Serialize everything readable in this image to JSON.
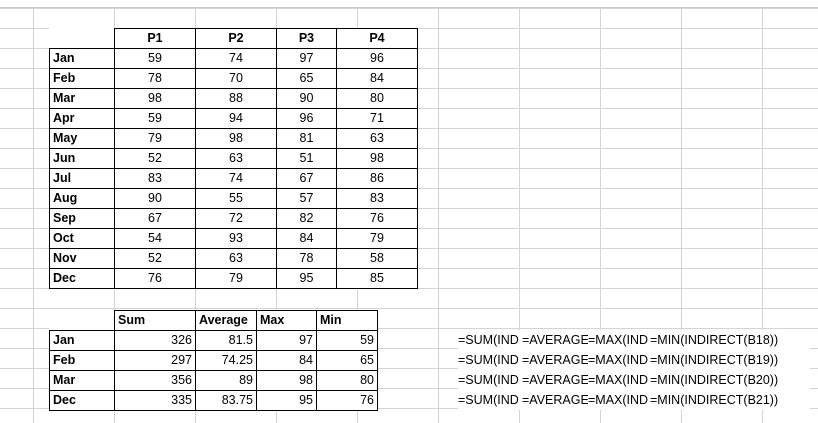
{
  "table1": {
    "headers": [
      "P1",
      "P2",
      "P3",
      "P4"
    ],
    "rows": [
      {
        "label": "Jan",
        "values": [
          "59",
          "74",
          "97",
          "96"
        ]
      },
      {
        "label": "Feb",
        "values": [
          "78",
          "70",
          "65",
          "84"
        ]
      },
      {
        "label": "Mar",
        "values": [
          "98",
          "88",
          "90",
          "80"
        ]
      },
      {
        "label": "Apr",
        "values": [
          "59",
          "94",
          "96",
          "71"
        ]
      },
      {
        "label": "May",
        "values": [
          "79",
          "98",
          "81",
          "63"
        ]
      },
      {
        "label": "Jun",
        "values": [
          "52",
          "63",
          "51",
          "98"
        ]
      },
      {
        "label": "Jul",
        "values": [
          "83",
          "74",
          "67",
          "86"
        ]
      },
      {
        "label": "Aug",
        "values": [
          "90",
          "55",
          "57",
          "83"
        ]
      },
      {
        "label": "Sep",
        "values": [
          "67",
          "72",
          "82",
          "76"
        ]
      },
      {
        "label": "Oct",
        "values": [
          "54",
          "93",
          "84",
          "79"
        ]
      },
      {
        "label": "Nov",
        "values": [
          "52",
          "63",
          "78",
          "58"
        ]
      },
      {
        "label": "Dec",
        "values": [
          "76",
          "79",
          "95",
          "85"
        ]
      }
    ]
  },
  "table2": {
    "headers": [
      "Sum",
      "Average",
      "Max",
      "Min"
    ],
    "rows": [
      {
        "label": "Jan",
        "values": [
          "326",
          "81.5",
          "97",
          "59"
        ]
      },
      {
        "label": "Feb",
        "values": [
          "297",
          "74.25",
          "84",
          "65"
        ]
      },
      {
        "label": "Mar",
        "values": [
          "356",
          "89",
          "98",
          "80"
        ]
      },
      {
        "label": "Dec",
        "values": [
          "335",
          "83.75",
          "95",
          "76"
        ]
      }
    ]
  },
  "formulas": [
    [
      "=SUM(IND",
      "=AVERAGE",
      "=MAX(IND",
      "=MIN(INDIRECT(B18))"
    ],
    [
      "=SUM(IND",
      "=AVERAGE",
      "=MAX(IND",
      "=MIN(INDIRECT(B19))"
    ],
    [
      "=SUM(IND",
      "=AVERAGE",
      "=MAX(IND",
      "=MIN(INDIRECT(B20))"
    ],
    [
      "=SUM(IND",
      "=AVERAGE",
      "=MAX(IND",
      "=MIN(INDIRECT(B21))"
    ]
  ]
}
